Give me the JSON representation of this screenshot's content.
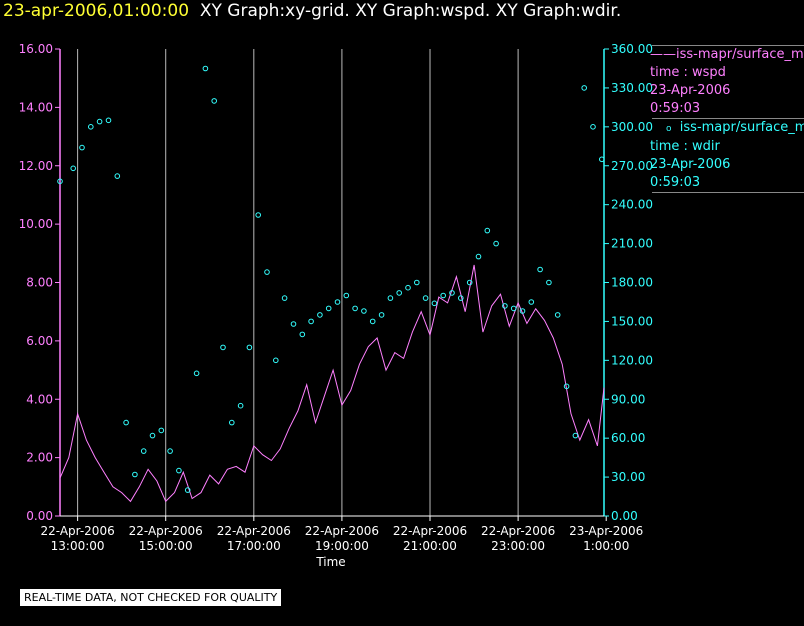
{
  "header": {
    "date_label": "23-apr-2006,01:00:00",
    "graph_titles": "XY Graph:xy-grid.  XY Graph:wspd.  XY Graph:wdir."
  },
  "legend": {
    "series1": {
      "line1": "iss-mapr/surface_m",
      "line2": "time : wspd",
      "line3": "23-Apr-2006",
      "line4": "0:59:03"
    },
    "series2": {
      "line1": "iss-mapr/surface_m",
      "line2": "time : wdir",
      "line3": "23-Apr-2006",
      "line4": "0:59:03"
    }
  },
  "footer_note": "REAL-TIME DATA, NOT CHECKED FOR QUALITY",
  "colors": {
    "background": "#000000",
    "wspd": "#ff80ff",
    "wdir": "#33ffff",
    "title_date": "#ffff33",
    "grid": "#ffffff"
  },
  "chart_data": {
    "type": "line",
    "xlabel": "Time",
    "x_range_hours": [
      12.6,
      24.95
    ],
    "x_ticks": [
      {
        "date": "22-Apr-2006",
        "time": "13:00:00",
        "hour": 13
      },
      {
        "date": "22-Apr-2006",
        "time": "15:00:00",
        "hour": 15
      },
      {
        "date": "22-Apr-2006",
        "time": "17:00:00",
        "hour": 17
      },
      {
        "date": "22-Apr-2006",
        "time": "19:00:00",
        "hour": 19
      },
      {
        "date": "22-Apr-2006",
        "time": "21:00:00",
        "hour": 21
      },
      {
        "date": "22-Apr-2006",
        "time": "23:00:00",
        "hour": 23
      },
      {
        "date": "23-Apr-2006",
        "time": "1:00:00",
        "hour": 25
      }
    ],
    "left_axis": {
      "ylim": [
        0,
        16
      ],
      "ticks": [
        "0.00",
        "2.00",
        "4.00",
        "6.00",
        "8.00",
        "10.00",
        "12.00",
        "14.00",
        "16.00"
      ]
    },
    "right_axis": {
      "ylim": [
        0,
        360
      ],
      "ticks": [
        "0.00",
        "30.00",
        "60.00",
        "90.00",
        "120.00",
        "150.00",
        "180.00",
        "210.00",
        "240.00",
        "270.00",
        "300.00",
        "330.00",
        "360.00"
      ]
    },
    "grid": "vertical-only",
    "legend_position": "right",
    "series": [
      {
        "name": "wspd",
        "style": "line",
        "axis": "left",
        "x": [
          12.6,
          12.8,
          13.0,
          13.2,
          13.4,
          13.6,
          13.8,
          14.0,
          14.2,
          14.4,
          14.6,
          14.8,
          15.0,
          15.2,
          15.4,
          15.6,
          15.8,
          16.0,
          16.2,
          16.4,
          16.6,
          16.8,
          17.0,
          17.2,
          17.4,
          17.6,
          17.8,
          18.0,
          18.2,
          18.4,
          18.6,
          18.8,
          19.0,
          19.2,
          19.4,
          19.6,
          19.8,
          20.0,
          20.2,
          20.4,
          20.6,
          20.8,
          21.0,
          21.2,
          21.4,
          21.6,
          21.8,
          22.0,
          22.2,
          22.4,
          22.6,
          22.8,
          23.0,
          23.2,
          23.4,
          23.6,
          23.8,
          24.0,
          24.2,
          24.4,
          24.6,
          24.8,
          24.95
        ],
        "y": [
          1.3,
          2.0,
          3.5,
          2.6,
          2.0,
          1.5,
          1.0,
          0.8,
          0.5,
          1.0,
          1.6,
          1.2,
          0.5,
          0.8,
          1.5,
          0.6,
          0.8,
          1.4,
          1.1,
          1.6,
          1.7,
          1.5,
          2.4,
          2.1,
          1.9,
          2.3,
          3.0,
          3.6,
          4.5,
          3.2,
          4.1,
          5.0,
          3.8,
          4.3,
          5.2,
          5.8,
          6.1,
          5.0,
          5.6,
          5.4,
          6.3,
          7.0,
          6.2,
          7.5,
          7.3,
          8.2,
          7.0,
          8.6,
          6.3,
          7.2,
          7.6,
          6.5,
          7.3,
          6.6,
          7.1,
          6.7,
          6.1,
          5.2,
          3.5,
          2.6,
          3.3,
          2.4,
          4.4
        ]
      },
      {
        "name": "wdir",
        "style": "scatter",
        "axis": "right",
        "x": [
          12.6,
          12.9,
          13.1,
          13.3,
          13.5,
          13.7,
          13.9,
          14.1,
          14.3,
          14.5,
          14.7,
          14.9,
          15.1,
          15.3,
          15.5,
          15.7,
          15.9,
          16.1,
          16.3,
          16.5,
          16.7,
          16.9,
          17.1,
          17.3,
          17.5,
          17.7,
          17.9,
          18.1,
          18.3,
          18.5,
          18.7,
          18.9,
          19.1,
          19.3,
          19.5,
          19.7,
          19.9,
          20.1,
          20.3,
          20.5,
          20.7,
          20.9,
          21.1,
          21.3,
          21.5,
          21.7,
          21.9,
          22.1,
          22.3,
          22.5,
          22.7,
          22.9,
          23.1,
          23.3,
          23.5,
          23.7,
          23.9,
          24.1,
          24.3,
          24.5,
          24.7,
          24.9
        ],
        "y": [
          258,
          268,
          284,
          300,
          304,
          305,
          262,
          72,
          32,
          50,
          62,
          66,
          50,
          35,
          20,
          110,
          345,
          320,
          130,
          72,
          85,
          130,
          232,
          188,
          120,
          168,
          148,
          140,
          150,
          155,
          160,
          165,
          170,
          160,
          158,
          150,
          155,
          168,
          172,
          176,
          180,
          168,
          164,
          170,
          172,
          168,
          180,
          200,
          220,
          210,
          162,
          160,
          158,
          165,
          190,
          180,
          155,
          100,
          62,
          330,
          300,
          275
        ]
      }
    ]
  }
}
